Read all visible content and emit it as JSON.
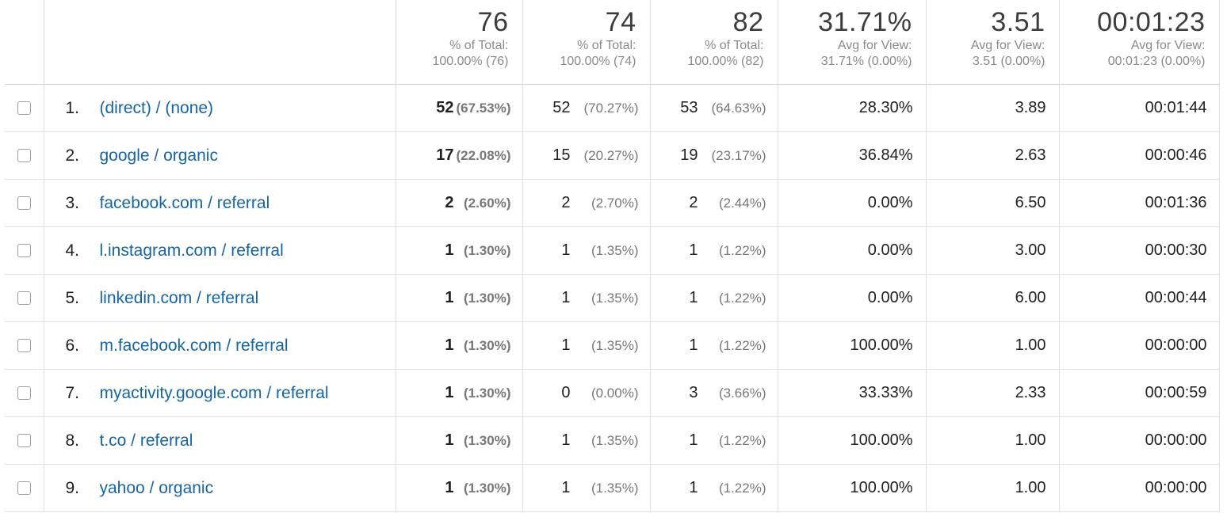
{
  "summary": [
    {
      "value": "76",
      "label1": "% of Total:",
      "label2": "100.00% (76)"
    },
    {
      "value": "74",
      "label1": "% of Total:",
      "label2": "100.00% (74)"
    },
    {
      "value": "82",
      "label1": "% of Total:",
      "label2": "100.00% (82)"
    },
    {
      "value": "31.71%",
      "label1": "Avg for View:",
      "label2": "31.71% (0.00%)"
    },
    {
      "value": "3.51",
      "label1": "Avg for View:",
      "label2": "3.51 (0.00%)"
    },
    {
      "value": "00:01:23",
      "label1": "Avg for View:",
      "label2": "00:01:23 (0.00%)"
    }
  ],
  "rows": [
    {
      "index": "1.",
      "name": "(direct) / (none)",
      "m1": "52",
      "m1pct": "(67.53%)",
      "m2": "52",
      "m2pct": "(70.27%)",
      "m3": "53",
      "m3pct": "(64.63%)",
      "m4": "28.30%",
      "m5": "3.89",
      "m6": "00:01:44"
    },
    {
      "index": "2.",
      "name": "google / organic",
      "m1": "17",
      "m1pct": "(22.08%)",
      "m2": "15",
      "m2pct": "(20.27%)",
      "m3": "19",
      "m3pct": "(23.17%)",
      "m4": "36.84%",
      "m5": "2.63",
      "m6": "00:00:46"
    },
    {
      "index": "3.",
      "name": "facebook.com / referral",
      "m1": "2",
      "m1pct": "(2.60%)",
      "m2": "2",
      "m2pct": "(2.70%)",
      "m3": "2",
      "m3pct": "(2.44%)",
      "m4": "0.00%",
      "m5": "6.50",
      "m6": "00:01:36"
    },
    {
      "index": "4.",
      "name": "l.instagram.com / referral",
      "m1": "1",
      "m1pct": "(1.30%)",
      "m2": "1",
      "m2pct": "(1.35%)",
      "m3": "1",
      "m3pct": "(1.22%)",
      "m4": "0.00%",
      "m5": "3.00",
      "m6": "00:00:30"
    },
    {
      "index": "5.",
      "name": "linkedin.com / referral",
      "m1": "1",
      "m1pct": "(1.30%)",
      "m2": "1",
      "m2pct": "(1.35%)",
      "m3": "1",
      "m3pct": "(1.22%)",
      "m4": "0.00%",
      "m5": "6.00",
      "m6": "00:00:44"
    },
    {
      "index": "6.",
      "name": "m.facebook.com / referral",
      "m1": "1",
      "m1pct": "(1.30%)",
      "m2": "1",
      "m2pct": "(1.35%)",
      "m3": "1",
      "m3pct": "(1.22%)",
      "m4": "100.00%",
      "m5": "1.00",
      "m6": "00:00:00"
    },
    {
      "index": "7.",
      "name": "myactivity.google.com / referral",
      "m1": "1",
      "m1pct": "(1.30%)",
      "m2": "0",
      "m2pct": "(0.00%)",
      "m3": "3",
      "m3pct": "(3.66%)",
      "m4": "33.33%",
      "m5": "2.33",
      "m6": "00:00:59"
    },
    {
      "index": "8.",
      "name": "t.co / referral",
      "m1": "1",
      "m1pct": "(1.30%)",
      "m2": "1",
      "m2pct": "(1.35%)",
      "m3": "1",
      "m3pct": "(1.22%)",
      "m4": "100.00%",
      "m5": "1.00",
      "m6": "00:00:00"
    },
    {
      "index": "9.",
      "name": "yahoo / organic",
      "m1": "1",
      "m1pct": "(1.30%)",
      "m2": "1",
      "m2pct": "(1.35%)",
      "m3": "1",
      "m3pct": "(1.22%)",
      "m4": "100.00%",
      "m5": "1.00",
      "m6": "00:00:00"
    }
  ],
  "colors": {
    "link": "#1565a6",
    "muted": "#8a8a8a",
    "grid": "#e0e0e0"
  }
}
